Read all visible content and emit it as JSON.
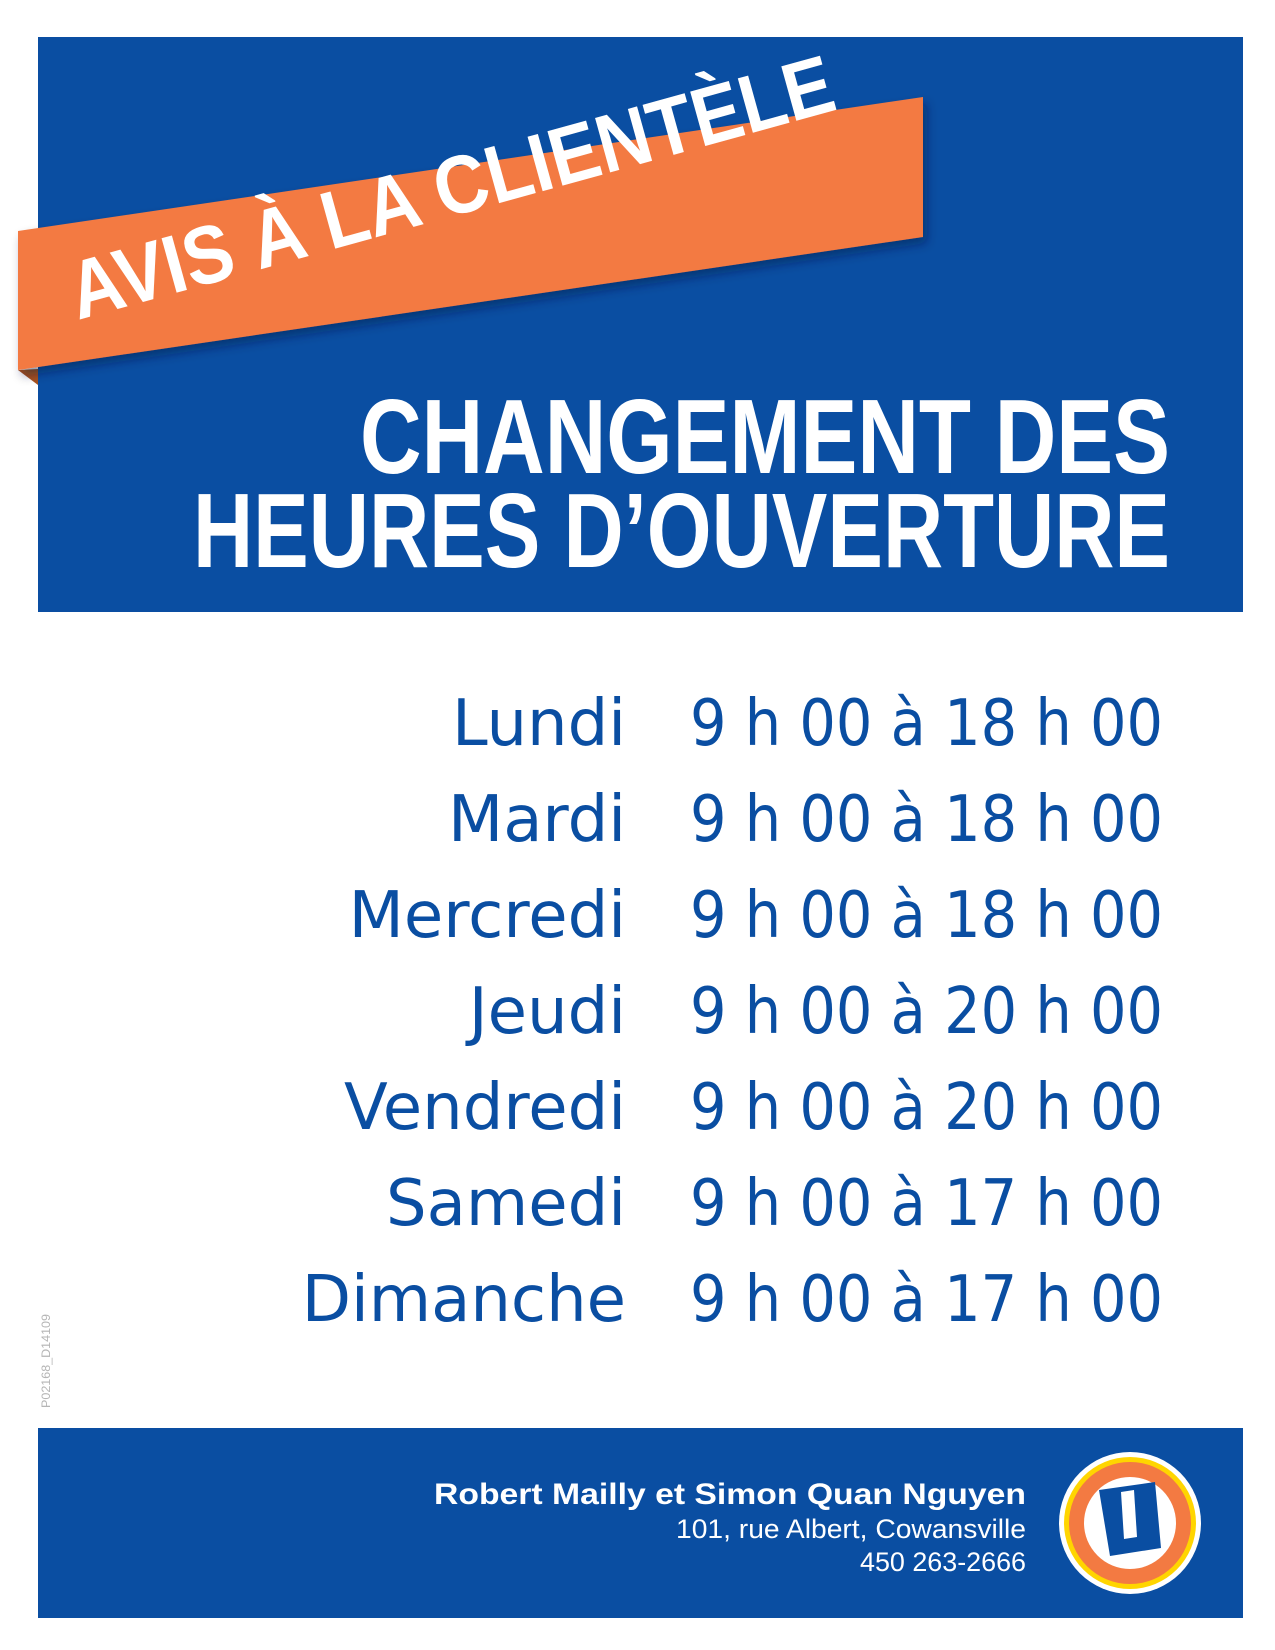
{
  "colors": {
    "brand_blue": "#0a4ea2",
    "banner_orange": "#f37a42",
    "logo_yellow": "#ffd500"
  },
  "banner": {
    "label": "AVIS À LA CLIENTÈLE"
  },
  "title": {
    "line1": "CHANGEMENT DES",
    "line2": "HEURES D’OUVERTURE"
  },
  "schedule": [
    {
      "day": "Lundi",
      "hours": "9 h 00 à 18 h 00"
    },
    {
      "day": "Mardi",
      "hours": "9 h 00 à 18 h 00"
    },
    {
      "day": "Mercredi",
      "hours": "9 h 00 à 18 h 00"
    },
    {
      "day": "Jeudi",
      "hours": "9 h 00 à 20 h 00"
    },
    {
      "day": "Vendredi",
      "hours": "9 h 00 à 20 h 00"
    },
    {
      "day": "Samedi",
      "hours": "9 h 00 à 17 h 00"
    },
    {
      "day": "Dimanche",
      "hours": "9 h 00 à 17 h 00"
    }
  ],
  "footer": {
    "owners": "Robert Mailly et Simon Quan Nguyen",
    "address": "101, rue Albert, Cowansville",
    "phone": "450 263-2666",
    "logo_letter": "U"
  },
  "reference_code": "P02168_D14109"
}
